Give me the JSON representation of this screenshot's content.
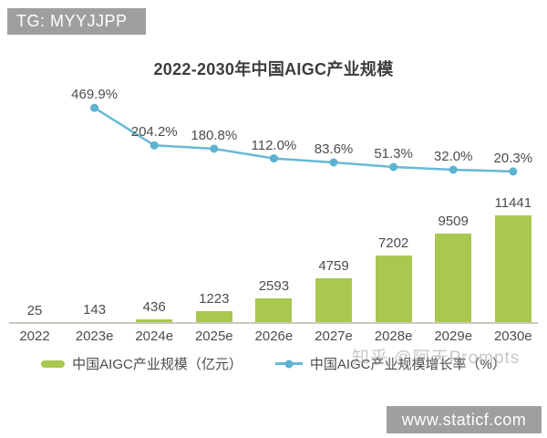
{
  "overlays": {
    "top_left_badge": "TG: MYYJJPP",
    "bottom_right_badge": "www.staticf.com",
    "watermark": "知乎 @阿天Prompts"
  },
  "chart_data": {
    "type": "bar+line",
    "title": "2022-2030年中国AIGC产业规模",
    "categories": [
      "2022",
      "2023e",
      "2024e",
      "2025e",
      "2026e",
      "2027e",
      "2028e",
      "2029e",
      "2030e"
    ],
    "series": [
      {
        "name": "中国AIGC产业规模（亿元）",
        "type": "bar",
        "color": "#a9c84f",
        "values": [
          25,
          143,
          436,
          1223,
          2593,
          4759,
          7202,
          9509,
          11441
        ],
        "value_labels": [
          "25",
          "143",
          "436",
          "1223",
          "2593",
          "4759",
          "7202",
          "9509",
          "11441"
        ]
      },
      {
        "name": "中国AIGC产业规模增长率（%）",
        "type": "line",
        "color": "#68b9d6",
        "marker_color": "#5cb2d1",
        "values": [
          null,
          469.9,
          204.2,
          180.8,
          112.0,
          83.6,
          51.3,
          32.0,
          20.3
        ],
        "value_labels": [
          null,
          "469.9%",
          "204.2%",
          "180.8%",
          "112.0%",
          "83.6%",
          "51.3%",
          "32.0%",
          "20.3%"
        ]
      }
    ],
    "xlabel": "",
    "ylabel": "",
    "ylim_bars": [
      0,
      11441
    ],
    "grid": false,
    "legend_position": "bottom",
    "data_labels_shown": true
  }
}
